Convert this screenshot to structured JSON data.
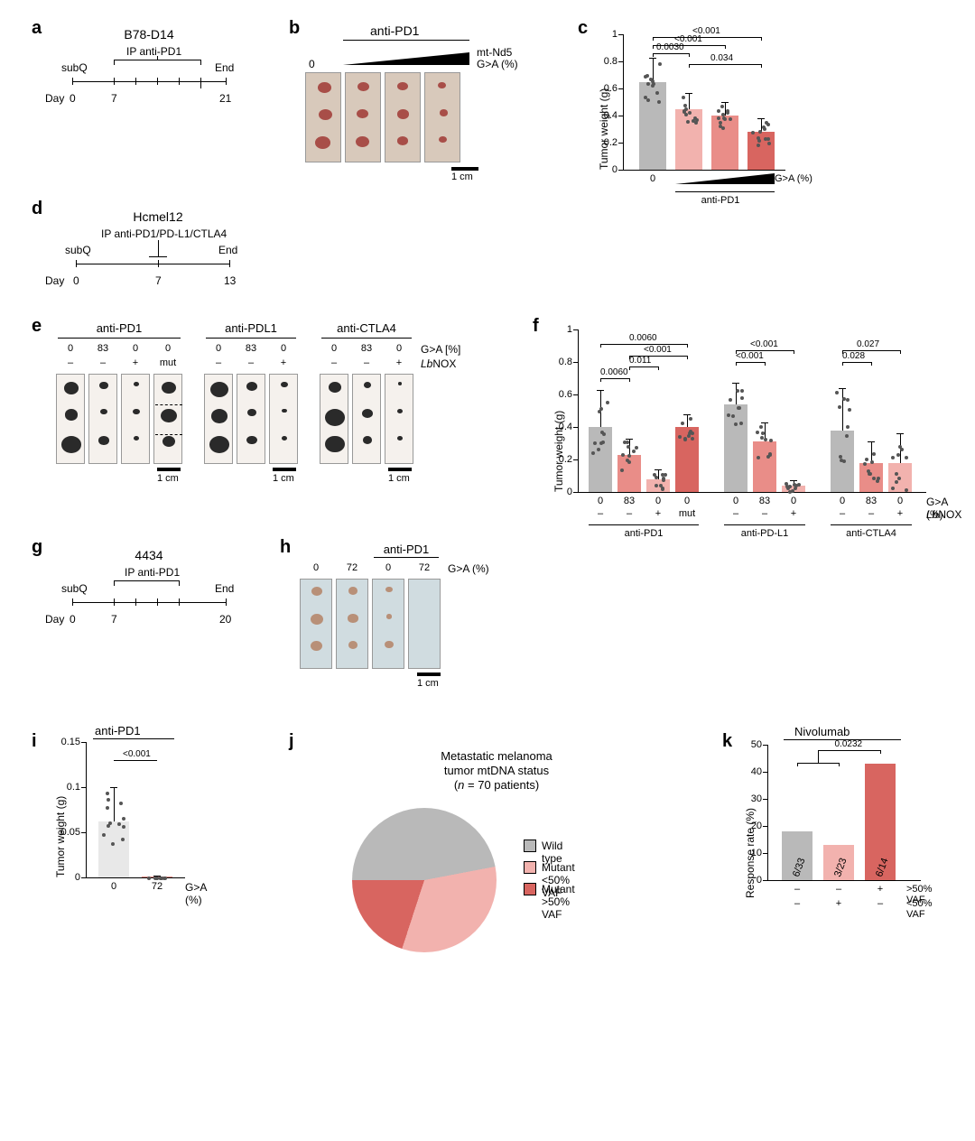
{
  "labels": {
    "a": "a",
    "b": "b",
    "c": "c",
    "d": "d",
    "e": "e",
    "f": "f",
    "g": "g",
    "h": "h",
    "i": "i",
    "j": "j",
    "k": "k"
  },
  "colors": {
    "gray": "#b9b9b9",
    "pink_light": "#f2b2ae",
    "pink_mid": "#e98d88",
    "red": "#d86560",
    "red_dark": "#c94d47",
    "bg": "#ffffff"
  },
  "panel_a": {
    "title": "B78-D14",
    "subQ": "subQ",
    "treatment": "IP anti-PD1",
    "end": "End",
    "day_label": "Day",
    "days": [
      "0",
      "7",
      "",
      "",
      "21"
    ],
    "line_start": 0,
    "line_end": 21
  },
  "panel_b": {
    "header": "anti-PD1",
    "ramp_left": "0",
    "ramp_label": "mt-Nd5\nG>A (%)",
    "cols": 4,
    "rows": 3,
    "scale_label": "1 cm"
  },
  "panel_c": {
    "type": "bar",
    "ylabel": "Tumor weight (g)",
    "ylim": [
      0,
      1.0
    ],
    "yticks": [
      0,
      0.2,
      0.4,
      0.6,
      0.8,
      1.0
    ],
    "bars": [
      {
        "label": "0",
        "value": 0.65,
        "err": 0.18,
        "color": "#b9b9b9"
      },
      {
        "label": "",
        "value": 0.45,
        "err": 0.12,
        "color": "#f2b2ae"
      },
      {
        "label": "",
        "value": 0.4,
        "err": 0.1,
        "color": "#e98d88"
      },
      {
        "label": "",
        "value": 0.28,
        "err": 0.1,
        "color": "#d86560"
      }
    ],
    "x_right": "G>A (%)",
    "x_treatment": "anti-PD1",
    "sigs": [
      {
        "from": 0,
        "to": 1,
        "p": "0.0030",
        "y": 0.86
      },
      {
        "from": 0,
        "to": 2,
        "p": "<0.001",
        "y": 0.92
      },
      {
        "from": 0,
        "to": 3,
        "p": "<0.001",
        "y": 0.98
      },
      {
        "from": 1,
        "to": 3,
        "p": "0.034",
        "y": 0.78
      }
    ],
    "n_dots": 12
  },
  "panel_d": {
    "title": "Hcmel12",
    "subQ": "subQ",
    "treatment": "IP anti-PD1/PD-L1/CTLA4",
    "end": "End",
    "day_label": "Day",
    "days": [
      "0",
      "7",
      "13"
    ]
  },
  "panel_e": {
    "groups": [
      "anti-PD1",
      "anti-PDL1",
      "anti-CTLA4"
    ],
    "ga_row": "G>A [%]",
    "lbnox_row": "LbNOX",
    "pd1_cols": [
      "0",
      "83",
      "0",
      "0"
    ],
    "pd1_lb": [
      "–",
      "–",
      "+",
      "mut"
    ],
    "pdl_cols": [
      "0",
      "83",
      "0"
    ],
    "pdl_lb": [
      "–",
      "–",
      "+"
    ],
    "ctla_cols": [
      "0",
      "83",
      "0"
    ],
    "ctla_lb": [
      "–",
      "–",
      "+"
    ],
    "scale_label": "1 cm",
    "lbnox_ital": "Lb",
    "lbnox_rest": "NOX"
  },
  "panel_f": {
    "type": "bar",
    "ylabel": "Tumor weight (g)",
    "ylim": [
      0,
      1.0
    ],
    "yticks": [
      0,
      0.2,
      0.4,
      0.6,
      0.8,
      1.0
    ],
    "groups": [
      {
        "treatment": "anti-PD1",
        "cols": [
          "0",
          "83",
          "0",
          "0"
        ],
        "lb": [
          "–",
          "–",
          "+",
          "mut"
        ],
        "bars": [
          {
            "value": 0.4,
            "err": 0.23,
            "color": "#b9b9b9"
          },
          {
            "value": 0.23,
            "err": 0.1,
            "color": "#e98d88"
          },
          {
            "value": 0.08,
            "err": 0.06,
            "color": "#f2b2ae"
          },
          {
            "value": 0.4,
            "err": 0.08,
            "color": "#d86560"
          }
        ]
      },
      {
        "treatment": "anti-PD-L1",
        "cols": [
          "0",
          "83",
          "0"
        ],
        "lb": [
          "–",
          "–",
          "+"
        ],
        "bars": [
          {
            "value": 0.54,
            "err": 0.13,
            "color": "#b9b9b9"
          },
          {
            "value": 0.31,
            "err": 0.12,
            "color": "#e98d88"
          },
          {
            "value": 0.04,
            "err": 0.03,
            "color": "#f2b2ae"
          }
        ]
      },
      {
        "treatment": "anti-CTLA4",
        "cols": [
          "0",
          "83",
          "0"
        ],
        "lb": [
          "–",
          "–",
          "+"
        ],
        "bars": [
          {
            "value": 0.38,
            "err": 0.26,
            "color": "#b9b9b9"
          },
          {
            "value": 0.18,
            "err": 0.13,
            "color": "#e98d88"
          },
          {
            "value": 0.18,
            "err": 0.18,
            "color": "#f2b2ae"
          }
        ]
      }
    ],
    "sigs": [
      {
        "grp": 0,
        "from": 0,
        "to": 1,
        "p": "0.0060",
        "y": 0.7
      },
      {
        "grp": 0,
        "from": 1,
        "to": 2,
        "p": "0.011",
        "y": 0.77
      },
      {
        "grp": 0,
        "from": 1,
        "to": 3,
        "p": "<0.001",
        "y": 0.84
      },
      {
        "grp": 0,
        "from": 0,
        "to": 3,
        "p": "0.0060",
        "y": 0.91
      },
      {
        "grp": 1,
        "from": 0,
        "to": 1,
        "p": "<0.001",
        "y": 0.8
      },
      {
        "grp": 1,
        "from": 0,
        "to": 2,
        "p": "<0.001",
        "y": 0.87
      },
      {
        "grp": 2,
        "from": 0,
        "to": 1,
        "p": "0.028",
        "y": 0.8
      },
      {
        "grp": 2,
        "from": 0,
        "to": 2,
        "p": "0.027",
        "y": 0.87
      }
    ],
    "ga_row": "G>A (%)",
    "lbnox_ital": "Lb",
    "lbnox_rest": "NOX"
  },
  "panel_g": {
    "title": "4434",
    "subQ": "subQ",
    "treatment": "IP anti-PD1",
    "end": "End",
    "day_label": "Day",
    "days": [
      "0",
      "7",
      "",
      "20"
    ]
  },
  "panel_h": {
    "header": "anti-PD1",
    "cols": [
      "0",
      "72",
      "0",
      "72"
    ],
    "ga": "G>A (%)",
    "scale_label": "1 cm"
  },
  "panel_i": {
    "type": "bar",
    "header": "anti-PD1",
    "ylabel": "Tumor weight (g)",
    "ylim": [
      0,
      0.15
    ],
    "yticks": [
      0,
      0.05,
      0.1,
      0.15
    ],
    "bars": [
      {
        "label": "0",
        "value": 0.062,
        "err": 0.038,
        "color": "#e8e8e8"
      },
      {
        "label": "72",
        "value": 0.001,
        "err": 0.001,
        "color": "#e98d88"
      }
    ],
    "sig": {
      "p": "<0.001",
      "y": 0.13
    },
    "x_row": "G>A (%)"
  },
  "panel_j": {
    "title_l1": "Metastatic melanoma",
    "title_l2": "tumor mtDNA status",
    "title_l3": "(n = 70 patients)",
    "slices": [
      {
        "label": "Wild type",
        "frac": 0.47,
        "color": "#b9b9b9"
      },
      {
        "label": "Mutant <50% VAF",
        "frac": 0.33,
        "color": "#f2b2ae"
      },
      {
        "label": "Mutant >50% VAF",
        "frac": 0.2,
        "color": "#d86560"
      }
    ]
  },
  "panel_k": {
    "header": "Nivolumab",
    "ylabel": "Response rate (%)",
    "ylim": [
      0,
      50
    ],
    "yticks": [
      0,
      10,
      20,
      30,
      40,
      50
    ],
    "bars": [
      {
        "value": 18,
        "frac": "6/33",
        "color": "#b9b9b9"
      },
      {
        "value": 13,
        "frac": "3/23",
        "color": "#f2b2ae"
      },
      {
        "value": 43,
        "frac": "6/14",
        "color": "#d86560"
      }
    ],
    "sig": {
      "p": "0.0232",
      "y": 48
    },
    "rows": [
      {
        "label": ">50% VAF",
        "vals": [
          "–",
          "–",
          "+"
        ]
      },
      {
        "label": "<50% VAF",
        "vals": [
          "–",
          "+",
          "–"
        ]
      }
    ]
  }
}
